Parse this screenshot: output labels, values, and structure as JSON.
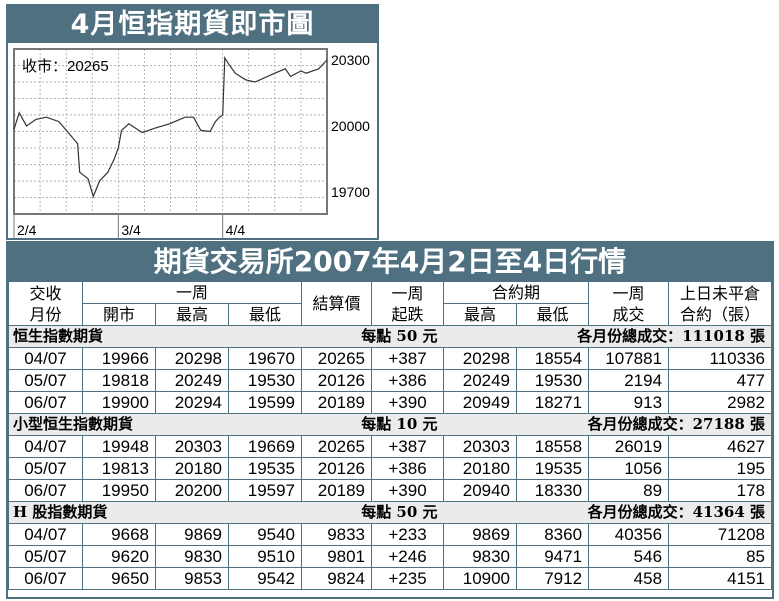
{
  "chart_data": {
    "type": "line",
    "title": "4月恒指期貨即市圖",
    "annotation": "收市：20265",
    "ylim": [
      19600,
      20350
    ],
    "y_ticks": [
      20300,
      20000,
      19700
    ],
    "x_ticks": [
      "2/4",
      "3/4",
      "4/4"
    ],
    "grid": true,
    "series_x": [
      0,
      0.05,
      0.12,
      0.21,
      0.31,
      0.43,
      0.52,
      0.61,
      0.63,
      0.71,
      0.76,
      0.82,
      0.9,
      0.96,
      1.0,
      1.03,
      1.1,
      1.23,
      1.35,
      1.49,
      1.64,
      1.72,
      1.79,
      1.88,
      1.93,
      1.97,
      2.0,
      2.02,
      2.06,
      2.12,
      2.22,
      2.31,
      2.5,
      2.6,
      2.65,
      2.75,
      2.8,
      2.92,
      3.0
    ],
    "series_y": [
      19985,
      20060,
      20000,
      20030,
      20040,
      20020,
      19970,
      19920,
      19790,
      19760,
      19680,
      19750,
      19790,
      19850,
      19900,
      19980,
      20010,
      19970,
      19990,
      20010,
      20040,
      20040,
      19980,
      19975,
      20020,
      20040,
      20050,
      20310,
      20280,
      20240,
      20210,
      20200,
      20240,
      20260,
      20225,
      20250,
      20240,
      20260,
      20300
    ]
  },
  "table": {
    "title": "期貨交易所2007年4月2日至4日行情",
    "headers": {
      "month": "交收月份",
      "week": "一周",
      "open": "開市",
      "high": "最高",
      "low": "最低",
      "settle": "結算價",
      "change": "一周起跌",
      "contract": "合約期",
      "c_high": "最高",
      "c_low": "最低",
      "volume": "一周成交",
      "oi": "上日未平倉合約（張）"
    },
    "sections": [
      {
        "name": "恒生指數期貨",
        "per_point": "每點 50 元",
        "total": "各月份總成交：111018 張",
        "rows": [
          [
            "04/07",
            "19966",
            "20298",
            "19670",
            "20265",
            "+387",
            "20298",
            "18554",
            "107881",
            "110336"
          ],
          [
            "05/07",
            "19818",
            "20249",
            "19530",
            "20126",
            "+386",
            "20249",
            "19530",
            "2194",
            "477"
          ],
          [
            "06/07",
            "19900",
            "20294",
            "19599",
            "20189",
            "+390",
            "20949",
            "18271",
            "913",
            "2982"
          ]
        ]
      },
      {
        "name": "小型恒生指數期貨",
        "per_point": "每點 10 元",
        "total": "各月份總成交：27188 張",
        "rows": [
          [
            "04/07",
            "19948",
            "20303",
            "19669",
            "20265",
            "+387",
            "20303",
            "18558",
            "26019",
            "4627"
          ],
          [
            "05/07",
            "19813",
            "20180",
            "19535",
            "20126",
            "+386",
            "20180",
            "19535",
            "1056",
            "195"
          ],
          [
            "06/07",
            "19950",
            "20200",
            "19597",
            "20189",
            "+390",
            "20940",
            "18330",
            "89",
            "178"
          ]
        ]
      },
      {
        "name": "H 股指數期貨",
        "per_point": "每點 50 元",
        "total": "各月份總成交：41364 張",
        "rows": [
          [
            "04/07",
            "9668",
            "9869",
            "9540",
            "9833",
            "+233",
            "9869",
            "8360",
            "40356",
            "71208"
          ],
          [
            "05/07",
            "9620",
            "9830",
            "9510",
            "9801",
            "+246",
            "9830",
            "9471",
            "546",
            "85"
          ],
          [
            "06/07",
            "9650",
            "9853",
            "9542",
            "9824",
            "+235",
            "10900",
            "7912",
            "458",
            "4151"
          ]
        ]
      }
    ]
  }
}
